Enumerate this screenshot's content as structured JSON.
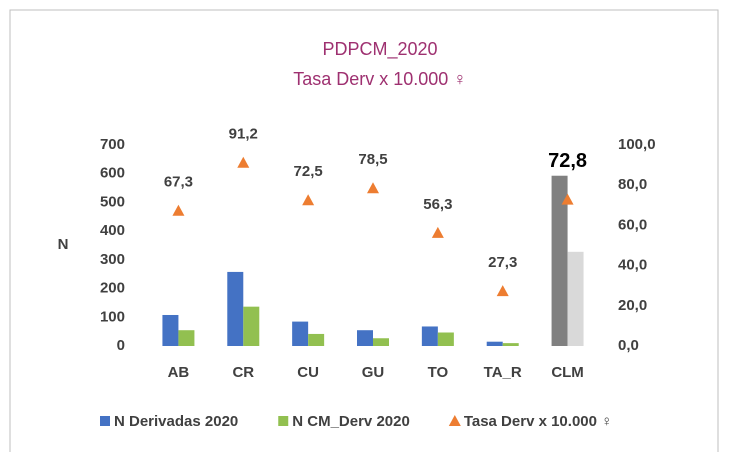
{
  "chart_data": {
    "type": "bar",
    "title": "PDPCM_2020",
    "subtitle": "Tasa Derv x 10.000 ♀",
    "y_label": "N",
    "categories": [
      "AB",
      "CR",
      "CU",
      "GU",
      "TO",
      "TA_R",
      "CLM"
    ],
    "series": [
      {
        "name": "N Derivadas 2020",
        "color": "#4472c4",
        "colors": [
          "#4472c4",
          "#4472c4",
          "#4472c4",
          "#4472c4",
          "#4472c4",
          "#4472c4",
          "#808080"
        ],
        "values": [
          108,
          258,
          85,
          55,
          68,
          15,
          593
        ]
      },
      {
        "name": "N CM_Derv 2020",
        "color": "#92c050",
        "colors": [
          "#92c050",
          "#92c050",
          "#92c050",
          "#92c050",
          "#92c050",
          "#92c050",
          "#d9d9d9"
        ],
        "values": [
          55,
          137,
          42,
          27,
          47,
          10,
          328
        ]
      },
      {
        "name": "Tasa Derv x 10.000 ♀",
        "type": "scatter",
        "axis": "y2",
        "color": "#ed7d31",
        "values": [
          67.3,
          91.2,
          72.5,
          78.5,
          56.3,
          27.3,
          72.8
        ],
        "value_labels": [
          "67,3",
          "91,2",
          "72,5",
          "78,5",
          "56,3",
          "27,3",
          "72,8"
        ]
      }
    ],
    "ylim": [
      0,
      700
    ],
    "yticks": [
      0,
      100,
      200,
      300,
      400,
      500,
      600,
      700
    ],
    "y2lim": [
      0,
      100
    ],
    "y2ticks": [
      {
        "value": 0,
        "label": "0,0"
      },
      {
        "value": 20,
        "label": "20,0"
      },
      {
        "value": 40,
        "label": "40,0"
      },
      {
        "value": 60,
        "label": "60,0"
      },
      {
        "value": 80,
        "label": "80,0"
      },
      {
        "value": 100,
        "label": "100,0"
      }
    ],
    "legend": "bottom"
  }
}
